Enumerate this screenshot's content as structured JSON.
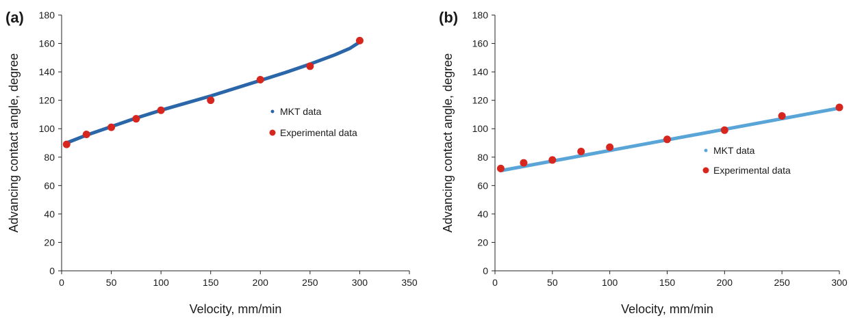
{
  "chart_data": [
    {
      "type": "scatter",
      "panel_label": "(a)",
      "xlabel": "Velocity, mm/min",
      "ylabel": "Advancing contact angle, degree",
      "xlim": [
        0,
        350
      ],
      "ylim": [
        0,
        180
      ],
      "xticks": [
        0,
        50,
        100,
        150,
        200,
        250,
        300,
        350
      ],
      "yticks": [
        0,
        20,
        40,
        60,
        80,
        100,
        120,
        140,
        160,
        180
      ],
      "grid": false,
      "legend_position": "center-right",
      "series": [
        {
          "name": "MKT data",
          "kind": "line",
          "color": "#2a66a8",
          "x": [
            5,
            25,
            50,
            75,
            100,
            125,
            150,
            175,
            200,
            225,
            250,
            275,
            290,
            300
          ],
          "y": [
            90,
            95.5,
            101.5,
            107.5,
            113,
            118,
            123,
            128.5,
            134,
            139.5,
            145.5,
            152,
            156.5,
            161
          ]
        },
        {
          "name": "Experimental data",
          "kind": "points",
          "color": "#d7261e",
          "x": [
            5,
            25,
            50,
            75,
            100,
            150,
            200,
            250,
            300
          ],
          "y": [
            89,
            96,
            101,
            107,
            113,
            120,
            134.5,
            144,
            162
          ]
        }
      ]
    },
    {
      "type": "scatter",
      "panel_label": "(b)",
      "xlabel": "Velocity, mm/min",
      "ylabel": "Advancing contact angle, degree",
      "xlim": [
        0,
        300
      ],
      "ylim": [
        0,
        180
      ],
      "xticks": [
        0,
        50,
        100,
        150,
        200,
        250,
        300
      ],
      "yticks": [
        0,
        20,
        40,
        60,
        80,
        100,
        120,
        140,
        160,
        180
      ],
      "grid": false,
      "legend_position": "center-right",
      "series": [
        {
          "name": "MKT data",
          "kind": "line",
          "color": "#5aa5d8",
          "x": [
            5,
            300
          ],
          "y": [
            70.5,
            114.5
          ]
        },
        {
          "name": "Experimental data",
          "kind": "points",
          "color": "#d7261e",
          "x": [
            5,
            25,
            50,
            75,
            100,
            150,
            200,
            250,
            300
          ],
          "y": [
            72,
            76,
            78,
            84,
            87,
            92.5,
            99,
            109,
            115
          ]
        }
      ]
    }
  ]
}
